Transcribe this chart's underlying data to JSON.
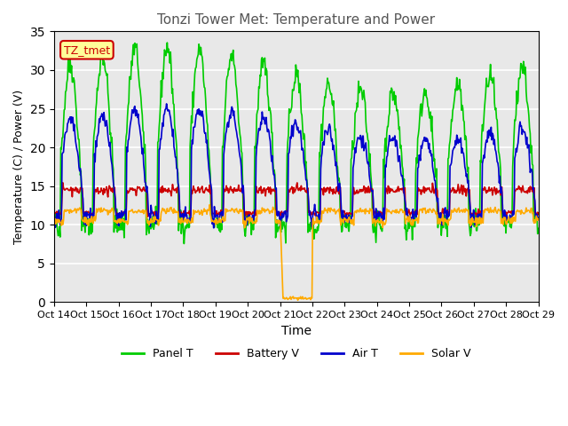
{
  "title": "Tonzi Tower Met: Temperature and Power",
  "xlabel": "Time",
  "ylabel": "Temperature (C) / Power (V)",
  "ylim": [
    0,
    35
  ],
  "yticks": [
    0,
    5,
    10,
    15,
    20,
    25,
    30,
    35
  ],
  "xtick_labels": [
    "Oct 14",
    "Oct 15",
    "Oct 16",
    "Oct 17",
    "Oct 18",
    "Oct 19",
    "Oct 20",
    "Oct 21",
    "Oct 22",
    "Oct 23",
    "Oct 24",
    "Oct 25",
    "Oct 26",
    "Oct 27",
    "Oct 28",
    "Oct 29"
  ],
  "annotation_text": "TZ_tmet",
  "annotation_color": "#cc0000",
  "annotation_bg": "#ffff99",
  "bg_color": "#e8e8e8",
  "panel_T_color": "#00cc00",
  "battery_V_color": "#cc0000",
  "air_T_color": "#0000cc",
  "solar_V_color": "#ffaa00",
  "legend_labels": [
    "Panel T",
    "Battery V",
    "Air T",
    "Solar V"
  ],
  "n_days": 15,
  "n_points_per_day": 48
}
